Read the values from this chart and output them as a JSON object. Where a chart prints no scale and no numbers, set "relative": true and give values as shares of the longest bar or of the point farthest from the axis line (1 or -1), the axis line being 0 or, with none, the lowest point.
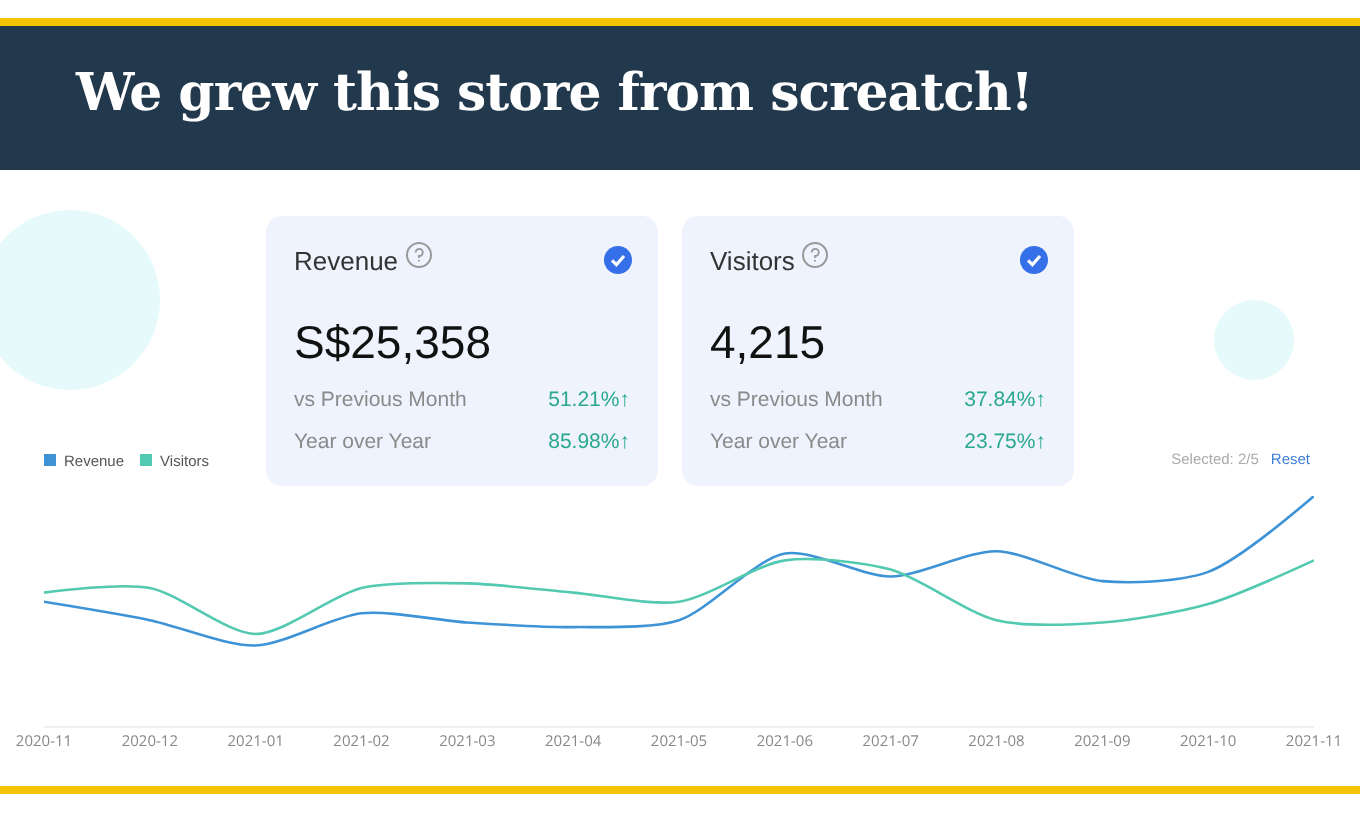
{
  "chart_data": [
    {
      "type": "line",
      "title": "We grew this store from screatch!",
      "relative": true,
      "legend": "top left",
      "line_style": "solid",
      "categories": [
        "2020-11",
        "2020-12",
        "2021-01",
        "2021-02",
        "2021-03",
        "2021-04",
        "2021-05",
        "2021-06",
        "2021-07",
        "2021-08",
        "2021-09",
        "2021-10",
        "2021-11"
      ],
      "series": [
        {
          "name": "Revenue",
          "color": "#3d93d6",
          "values": [
            0.54,
            0.46,
            0.35,
            0.49,
            0.45,
            0.43,
            0.46,
            0.75,
            0.65,
            0.76,
            0.63,
            0.67,
            1
          ]
        },
        {
          "name": "Visitors",
          "color": "#52c9b0",
          "values": [
            0.58,
            0.6,
            0.4,
            0.6,
            0.62,
            0.58,
            0.54,
            0.72,
            0.68,
            0.46,
            0.45,
            0.53,
            0.72
          ]
        }
      ],
      "annotations": [
        "Selected: 2/5",
        "Reset"
      ]
    },
    {
      "type": "other",
      "title": "Revenue",
      "annotations": [
        "S$25,358",
        "vs Previous Month",
        "51.21%↑",
        "Year over Year",
        "85.98%↑"
      ]
    },
    {
      "type": "other",
      "title": "Visitors",
      "annotations": [
        "4,215",
        "vs Previous Month",
        "37.84%↑",
        "Year over Year",
        "23.75%↑"
      ]
    }
  ]
}
